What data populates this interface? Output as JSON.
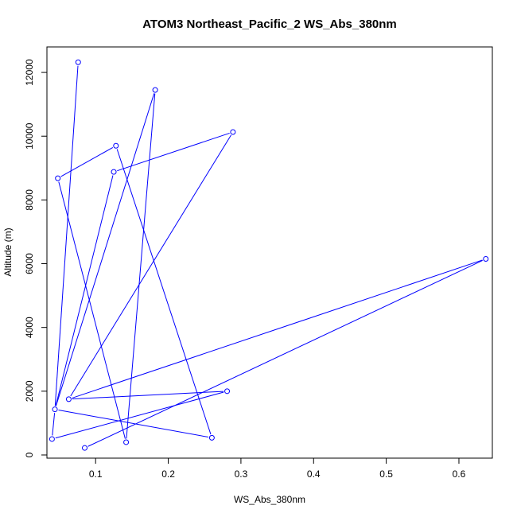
{
  "chart_data": {
    "type": "line",
    "title": "ATOM3 Northeast_Pacific_2 WS_Abs_380nm",
    "xlabel": "WS_Abs_380nm",
    "ylabel": "Altitude (m)",
    "xlim": [
      0.033,
      0.646
    ],
    "ylim": [
      -100,
      12800
    ],
    "xticks": [
      0.1,
      0.2,
      0.3,
      0.4,
      0.5,
      0.6
    ],
    "xtick_labels": [
      "0.1",
      "0.2",
      "0.3",
      "0.4",
      "0.5",
      "0.6"
    ],
    "yticks": [
      0,
      2000,
      4000,
      6000,
      8000,
      10000,
      12000
    ],
    "ytick_labels": [
      "0",
      "2000",
      "4000",
      "6000",
      "8000",
      "10000",
      "12000"
    ],
    "grid": false,
    "markers": "open-circle",
    "color": "#0000ff",
    "series": [
      {
        "x": [
          0.085,
          0.637,
          0.063,
          0.281,
          0.04,
          0.044,
          0.076
        ],
        "y": [
          220,
          6150,
          1750,
          2000,
          500,
          1430,
          12320
        ]
      },
      {
        "x": [
          0.142,
          0.048,
          0.128,
          0.26,
          0.044,
          0.182,
          0.142
        ],
        "y": [
          400,
          8680,
          9700,
          540,
          1430,
          11450,
          400
        ]
      },
      {
        "x": [
          0.063,
          0.289,
          0.125,
          0.044
        ],
        "y": [
          1750,
          10130,
          8880,
          1430
        ]
      }
    ]
  }
}
